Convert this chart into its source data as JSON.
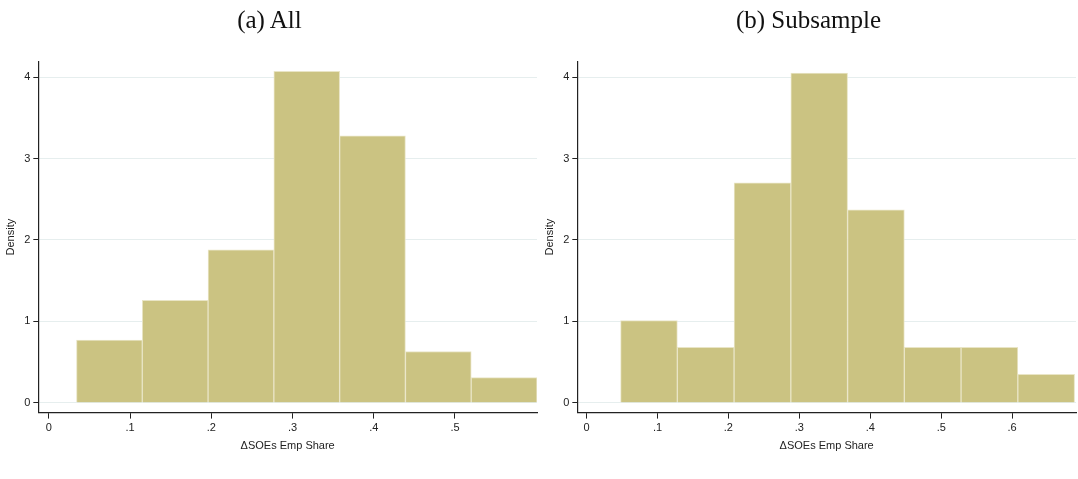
{
  "chart_data": [
    {
      "type": "histogram",
      "title": "(a) All",
      "xlabel": "ΔSOEs Emp Share",
      "ylabel": "Density",
      "color": "#cbc382",
      "bins": [
        0.034,
        0.115,
        0.196,
        0.277,
        0.358,
        0.439,
        0.52,
        0.601
      ],
      "values": [
        0.77,
        1.26,
        1.88,
        4.07,
        3.28,
        0.63,
        0.31
      ],
      "xlim": [
        -0.013,
        0.601
      ],
      "xticks": [
        0,
        {
          "value": 0.1,
          "label": ".1"
        },
        {
          "value": 0.2,
          "label": ".2"
        },
        {
          "value": 0.3,
          "label": ".3"
        },
        {
          "value": 0.4,
          "label": ".4"
        },
        {
          "value": 0.5,
          "label": ".5"
        }
      ],
      "ylim": [
        -0.12,
        4.19
      ],
      "yticks": [
        0,
        1,
        2,
        3,
        4
      ],
      "grid": "y",
      "legend": false
    },
    {
      "type": "histogram",
      "title": "(b) Subsample",
      "xlabel": "ΔSOEs Emp Share",
      "ylabel": "Density",
      "color": "#cbc382",
      "bins": [
        0.048,
        0.128,
        0.208,
        0.288,
        0.368,
        0.448,
        0.528,
        0.608,
        0.688
      ],
      "values": [
        1.01,
        0.68,
        2.7,
        4.05,
        2.37,
        0.68,
        0.68,
        0.35
      ],
      "xlim": [
        -0.013,
        0.69
      ],
      "xticks": [
        0,
        {
          "value": 0.1,
          "label": ".1"
        },
        {
          "value": 0.2,
          "label": ".2"
        },
        {
          "value": 0.3,
          "label": ".3"
        },
        {
          "value": 0.4,
          "label": ".4"
        },
        {
          "value": 0.5,
          "label": ".5"
        },
        {
          "value": 0.6,
          "label": ".6"
        }
      ],
      "ylim": [
        -0.12,
        4.19
      ],
      "yticks": [
        0,
        1,
        2,
        3,
        4
      ],
      "grid": "y",
      "legend": false
    }
  ]
}
